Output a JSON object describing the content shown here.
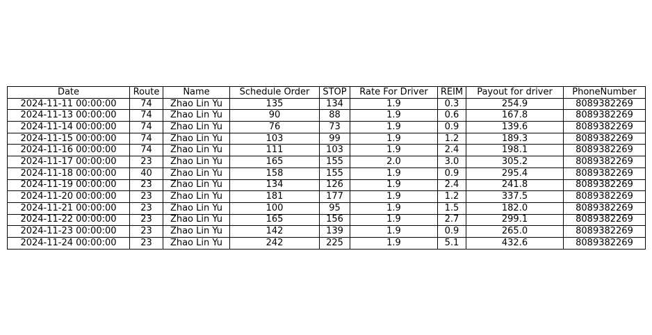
{
  "chart_data": {
    "type": "table",
    "columns": [
      "Date",
      "Route",
      "Name",
      "Schedule Order",
      "STOP",
      "Rate For Driver",
      "REIM",
      "Payout for driver",
      "PhoneNumber"
    ],
    "rows": [
      [
        "2024-11-11 00:00:00",
        "74",
        "Zhao Lin Yu",
        "135",
        "134",
        "1.9",
        "0.3",
        "254.9",
        "8089382269"
      ],
      [
        "2024-11-13 00:00:00",
        "74",
        "Zhao Lin Yu",
        "90",
        "88",
        "1.9",
        "0.6",
        "167.8",
        "8089382269"
      ],
      [
        "2024-11-14 00:00:00",
        "74",
        "Zhao Lin Yu",
        "76",
        "73",
        "1.9",
        "0.9",
        "139.6",
        "8089382269"
      ],
      [
        "2024-11-15 00:00:00",
        "74",
        "Zhao Lin Yu",
        "103",
        "99",
        "1.9",
        "1.2",
        "189.3",
        "8089382269"
      ],
      [
        "2024-11-16 00:00:00",
        "74",
        "Zhao Lin Yu",
        "111",
        "103",
        "1.9",
        "2.4",
        "198.1",
        "8089382269"
      ],
      [
        "2024-11-17 00:00:00",
        "23",
        "Zhao Lin Yu",
        "165",
        "155",
        "2.0",
        "3.0",
        "305.2",
        "8089382269"
      ],
      [
        "2024-11-18 00:00:00",
        "40",
        "Zhao Lin Yu",
        "158",
        "155",
        "1.9",
        "0.9",
        "295.4",
        "8089382269"
      ],
      [
        "2024-11-19 00:00:00",
        "23",
        "Zhao Lin Yu",
        "134",
        "126",
        "1.9",
        "2.4",
        "241.8",
        "8089382269"
      ],
      [
        "2024-11-20 00:00:00",
        "23",
        "Zhao Lin Yu",
        "181",
        "177",
        "1.9",
        "1.2",
        "337.5",
        "8089382269"
      ],
      [
        "2024-11-21 00:00:00",
        "23",
        "Zhao Lin Yu",
        "100",
        "95",
        "1.9",
        "1.5",
        "182.0",
        "8089382269"
      ],
      [
        "2024-11-22 00:00:00",
        "23",
        "Zhao Lin Yu",
        "165",
        "156",
        "1.9",
        "2.7",
        "299.1",
        "8089382269"
      ],
      [
        "2024-11-23 00:00:00",
        "23",
        "Zhao Lin Yu",
        "142",
        "139",
        "1.9",
        "0.9",
        "265.0",
        "8089382269"
      ],
      [
        "2024-11-24 00:00:00",
        "23",
        "Zhao Lin Yu",
        "242",
        "225",
        "1.9",
        "5.1",
        "432.6",
        "8089382269"
      ]
    ]
  },
  "colors": {
    "border": "#000000",
    "text": "#000000",
    "background": "#ffffff"
  }
}
